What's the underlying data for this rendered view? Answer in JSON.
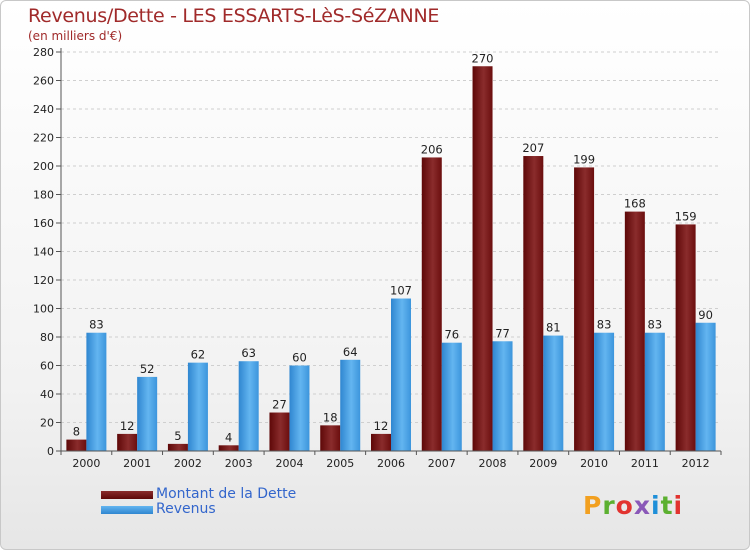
{
  "header": {
    "title": "Revenus/Dette - LES ESSARTS-LèS-SéZANNE",
    "subtitle": "(en milliers d'€)"
  },
  "legend": {
    "items": [
      {
        "label": "Montant de la Dette",
        "color": "#6b0a0a"
      },
      {
        "label": "Revenus",
        "color": "#4aa3e6"
      }
    ]
  },
  "logo": {
    "letters": [
      "P",
      "r",
      "o",
      "x",
      "i",
      "t",
      "i"
    ]
  },
  "chart_data": {
    "type": "bar",
    "title": "Revenus/Dette - LES ESSARTS-LèS-SéZANNE",
    "subtitle": "(en milliers d'€)",
    "xlabel": "",
    "ylabel": "",
    "ylim": [
      0,
      280
    ],
    "yticks": [
      0,
      20,
      40,
      60,
      80,
      100,
      120,
      140,
      160,
      180,
      200,
      220,
      240,
      260,
      280
    ],
    "grid": true,
    "legend_position": "bottom-left",
    "categories": [
      "2000",
      "2001",
      "2002",
      "2003",
      "2004",
      "2005",
      "2006",
      "2007",
      "2008",
      "2009",
      "2010",
      "2011",
      "2012"
    ],
    "series": [
      {
        "name": "Montant de la Dette",
        "color": "#6b0a0a",
        "values": [
          8,
          12,
          5,
          4,
          27,
          18,
          12,
          206,
          270,
          207,
          199,
          168,
          159
        ]
      },
      {
        "name": "Revenus",
        "color": "#4aa3e6",
        "values": [
          83,
          52,
          62,
          63,
          60,
          64,
          107,
          76,
          77,
          81,
          83,
          83,
          90
        ]
      }
    ]
  }
}
